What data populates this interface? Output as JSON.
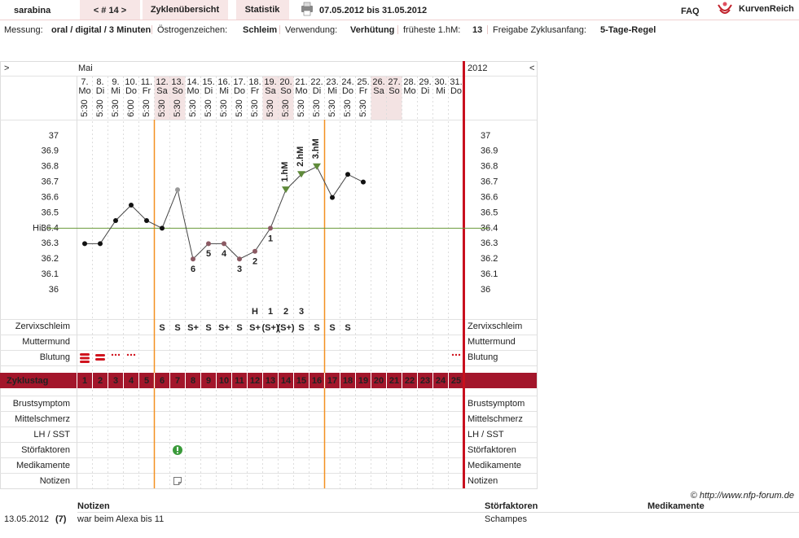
{
  "header": {
    "user": "sarabina",
    "cycle_nav": "< # 14 >",
    "tabs": [
      "Zyklenübersicht",
      "Statistik"
    ],
    "date_range": "07.05.2012 bis 31.05.2012",
    "faq": "FAQ",
    "logo": "KurvenReich"
  },
  "info": [
    {
      "label": "Messung:",
      "value": "oral / digital / 3 Minuten"
    },
    {
      "label": "Östrogenzeichen:",
      "value": "Schleim"
    },
    {
      "label": "Verwendung:",
      "value": "Verhütung"
    },
    {
      "label": "früheste 1.hM:",
      "value": "13"
    },
    {
      "label": "Freigabe Zyklusanfang:",
      "value": "5-Tage-Regel"
    }
  ],
  "calendar": {
    "month": "Mai",
    "year": "2012",
    "prev": ">",
    "next": "<",
    "weekdays": [
      "Mo",
      "Di",
      "Mi",
      "Do",
      "Fr",
      "Sa",
      "So",
      "Mo",
      "Di",
      "Mi",
      "Do",
      "Fr",
      "Sa",
      "So",
      "Mo",
      "Di",
      "Mi",
      "Do",
      "Fr",
      "Sa",
      "So",
      "Mo",
      "Di",
      "Mi",
      "Do"
    ],
    "times": [
      "5:30",
      "5:30",
      "5:30",
      "6:00",
      "5:30",
      "5:30",
      "5:30",
      "5:30",
      "5:30",
      "5:30",
      "5:30",
      "5:30",
      "5:30",
      "5:30",
      "5:30",
      "5:30",
      "5:30",
      "5:30",
      "5:30",
      null,
      null,
      null,
      null,
      null,
      null
    ]
  },
  "chart_data": {
    "type": "line",
    "categories": [
      "7.",
      "8.",
      "9.",
      "10.",
      "11.",
      "12.",
      "13.",
      "14.",
      "15.",
      "16.",
      "17.",
      "18.",
      "19.",
      "20.",
      "21.",
      "22.",
      "23.",
      "24.",
      "25.",
      "26.",
      "27.",
      "28.",
      "29.",
      "30.",
      "31."
    ],
    "values": [
      36.3,
      36.3,
      36.45,
      36.55,
      36.45,
      36.4,
      36.65,
      36.2,
      36.3,
      36.3,
      36.2,
      36.25,
      36.4,
      36.65,
      36.75,
      36.8,
      36.6,
      36.75,
      36.7,
      null,
      null,
      null,
      null,
      null,
      null
    ],
    "point_colors": [
      "#111",
      "#111",
      "#111",
      "#111",
      "#111",
      "#111",
      "#999",
      "#8b5a63",
      "#8b5a63",
      "#8b5a63",
      "#8b5a63",
      "#8b5a63",
      "#8b5a63",
      "#5f8a3a",
      "#5f8a3a",
      "#5f8a3a",
      "#111",
      "#111",
      "#111",
      null,
      null,
      null,
      null,
      null,
      null
    ],
    "line_color": "#444",
    "low_labels": [
      null,
      null,
      null,
      null,
      null,
      null,
      null,
      6,
      5,
      4,
      3,
      2,
      1,
      null,
      null,
      null,
      null,
      null,
      null,
      null,
      null,
      null,
      null,
      null,
      null
    ],
    "high_labels": [
      null,
      null,
      null,
      null,
      null,
      null,
      null,
      null,
      null,
      null,
      null,
      null,
      null,
      "1.hM",
      "2.hM",
      "3.hM",
      null,
      null,
      null,
      null,
      null,
      null,
      null,
      null,
      null
    ],
    "ylim": [
      35.9,
      37.1
    ],
    "yticks": [
      37,
      36.9,
      36.8,
      36.7,
      36.6,
      36.5,
      36.4,
      36.3,
      36.2,
      36.1,
      36
    ],
    "hil": 36.4,
    "hil_label": "HiL",
    "hil_color": "#6a9a3a"
  },
  "rows": {
    "cervix_markers": [
      null,
      null,
      null,
      null,
      null,
      null,
      null,
      null,
      null,
      null,
      null,
      "H",
      "1",
      "2",
      "3",
      null,
      null,
      null,
      null,
      null,
      null,
      null,
      null,
      null,
      null
    ],
    "zervixschleim_label": "Zervixschleim",
    "zervixschleim": [
      null,
      null,
      null,
      null,
      null,
      "S",
      "S",
      "S+",
      "S",
      "S+",
      "S",
      "S+",
      "(S+)",
      "(S+)",
      "S",
      "S",
      "S",
      "S",
      null,
      null,
      null,
      null,
      null,
      null,
      null
    ],
    "muttermund_label": "Muttermund",
    "blutung_label": "Blutung",
    "zyklustag_label": "Zyklustag",
    "cycle_days": [
      1,
      2,
      3,
      4,
      5,
      6,
      7,
      8,
      9,
      10,
      11,
      12,
      13,
      14,
      15,
      16,
      17,
      18,
      19,
      20,
      21,
      22,
      23,
      24,
      25
    ],
    "symptoms": [
      "Brustsymptom",
      "Mittelschmerz",
      "LH / SST",
      "Störfaktoren",
      "Medikamente",
      "Notizen"
    ]
  },
  "footer": {
    "copyright": "© http://www.nfp-forum.de"
  },
  "notes": {
    "headers": [
      "Notizen",
      "Störfaktoren",
      "Medikamente"
    ],
    "rows": [
      [
        "13.05.2012",
        "(7)",
        "war  beim Alexa bis 11",
        "Schampes"
      ]
    ]
  }
}
